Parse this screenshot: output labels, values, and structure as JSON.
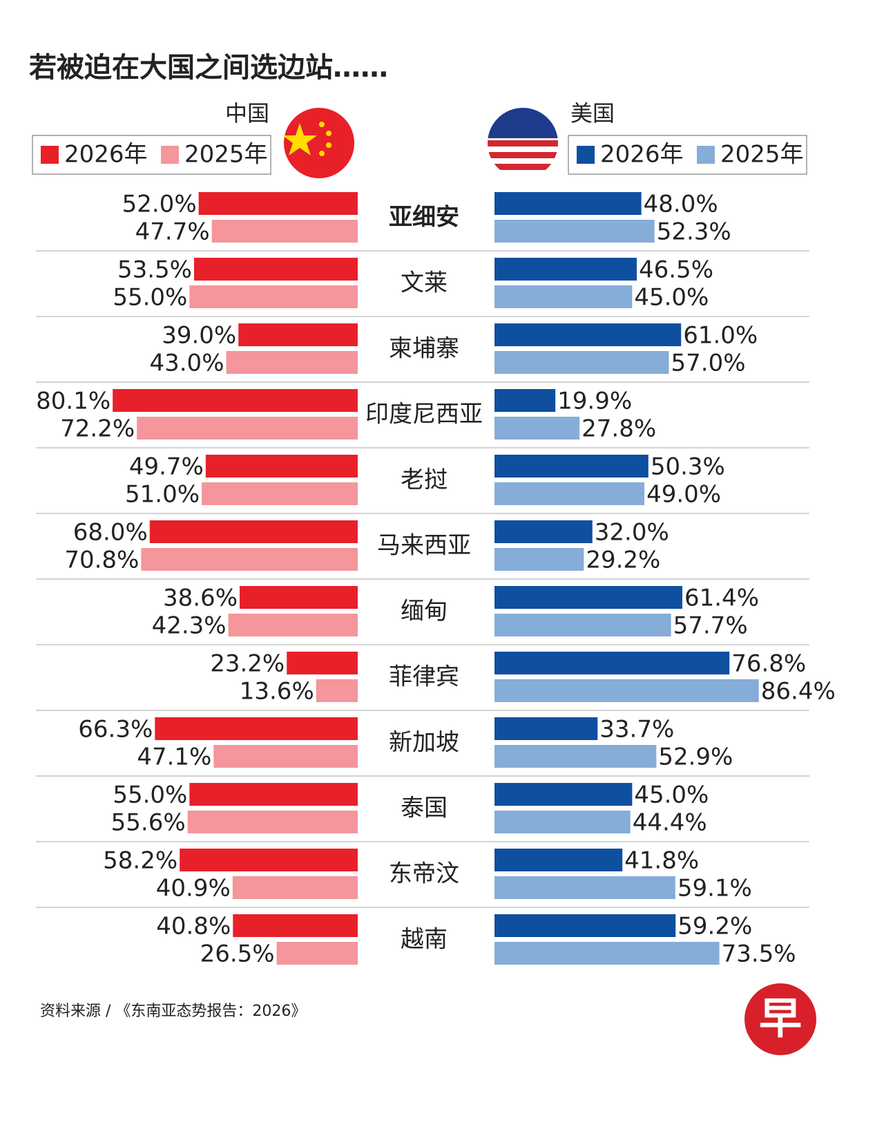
{
  "chart_data": {
    "type": "diverging-bar",
    "title": "若被迫在大国之间选边站……",
    "source": "资料来源 / 《东南亚态势报告：2026》",
    "logo": "早",
    "categories": [
      "亚细安",
      "文莱",
      "柬埔寨",
      "印度尼西亚",
      "老挝",
      "马来西亚",
      "缅甸",
      "菲律宾",
      "新加坡",
      "泰国",
      "东帝汶",
      "越南"
    ],
    "panels": [
      {
        "name": "中国",
        "series": [
          {
            "name": "2026年",
            "color": "#e8202a",
            "values": [
              52.0,
              53.5,
              39.0,
              80.1,
              49.7,
              68.0,
              38.6,
              23.2,
              66.3,
              55.0,
              58.2,
              40.8
            ],
            "value_labels": [
              "52.0%",
              "53.5%",
              "39.0%",
              "80.1%",
              "49.7%",
              "68.0%",
              "38.6%",
              "23.2%",
              "66.3%",
              "55.0%",
              "58.2%",
              "40.8%"
            ]
          },
          {
            "name": "2025年",
            "color": "#f4969b",
            "values": [
              47.7,
              55.0,
              43.0,
              72.2,
              51.0,
              70.8,
              42.3,
              13.6,
              47.1,
              55.6,
              40.9,
              26.5
            ],
            "value_labels": [
              "47.7%",
              "55.0%",
              "43.0%",
              "72.2%",
              "51.0%",
              "70.8%",
              "42.3%",
              "13.6%",
              "47.1%",
              "55.6%",
              "40.9%",
              "26.5%"
            ]
          }
        ]
      },
      {
        "name": "美国",
        "series": [
          {
            "name": "2026年",
            "color": "#0f4fa0",
            "values": [
              48.0,
              46.5,
              61.0,
              19.9,
              50.3,
              32.0,
              61.4,
              76.8,
              33.7,
              45.0,
              41.8,
              59.2
            ],
            "value_labels": [
              "48.0%",
              "46.5%",
              "61.0%",
              "19.9%",
              "50.3%",
              "32.0%",
              "61.4%",
              "76.8%",
              "33.7%",
              "45.0%",
              "41.8%",
              "59.2%"
            ]
          },
          {
            "name": "2025年",
            "color": "#86acd8",
            "values": [
              52.3,
              45.0,
              57.0,
              27.8,
              49.0,
              29.2,
              57.7,
              86.4,
              52.9,
              44.4,
              59.1,
              73.5
            ],
            "value_labels": [
              "52.3%",
              "45.0%",
              "57.0%",
              "27.8%",
              "49.0%",
              "29.2%",
              "57.7%",
              "86.4%",
              "52.9%",
              "44.4%",
              "59.1%",
              "73.5%"
            ]
          }
        ]
      }
    ]
  }
}
